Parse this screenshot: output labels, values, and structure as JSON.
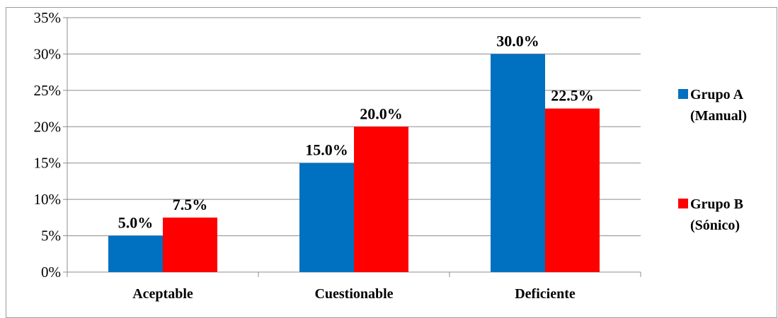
{
  "chart_data": {
    "type": "bar",
    "categories": [
      "Aceptable",
      "Cuestionable",
      "Deficiente"
    ],
    "series": [
      {
        "name": "Grupo A (Manual)",
        "legend_lines": [
          "Grupo A",
          "(Manual)"
        ],
        "values": [
          5.0,
          15.0,
          30.0
        ],
        "labels": [
          "5.0%",
          "15.0%",
          "30.0%"
        ],
        "color": "#0070c0"
      },
      {
        "name": "Grupo B (Sónico)",
        "legend_lines": [
          "Grupo B",
          "(Sónico)"
        ],
        "values": [
          7.5,
          20.0,
          22.5
        ],
        "labels": [
          "7.5%",
          "20.0%",
          "22.5%"
        ],
        "color": "#ff0000"
      }
    ],
    "y_ticks": [
      "0%",
      "5%",
      "10%",
      "15%",
      "20%",
      "25%",
      "30%",
      "35%"
    ],
    "ylim": [
      0,
      35
    ],
    "grid": true,
    "legend_position": "right",
    "title": "",
    "xlabel": "",
    "ylabel": ""
  }
}
